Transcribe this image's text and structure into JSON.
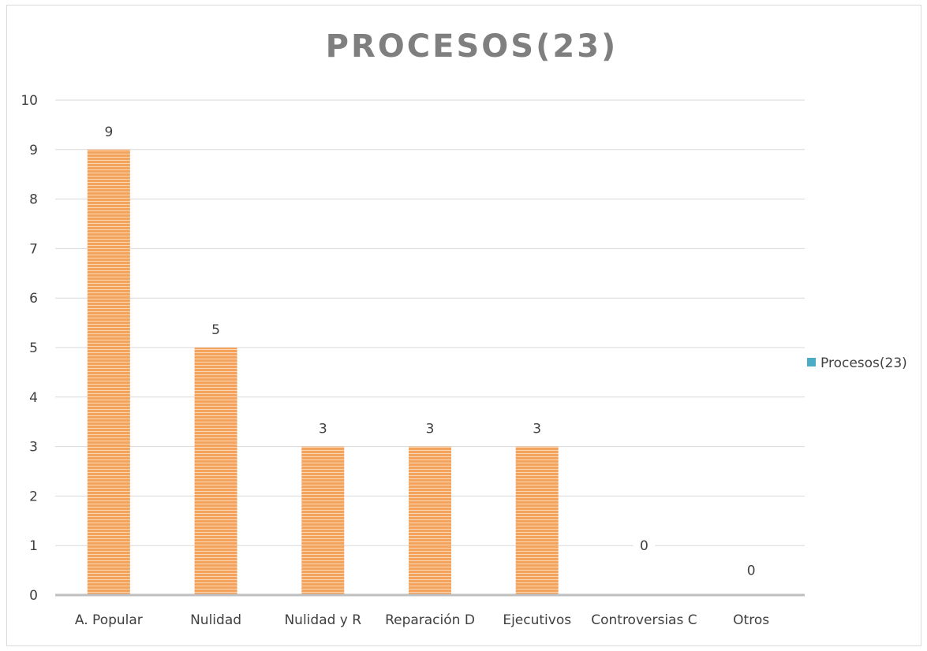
{
  "chart_data": {
    "type": "bar",
    "title": "PROCESOS(23)",
    "xlabel": "",
    "ylabel": "",
    "categories": [
      "A. Popular",
      "Nulidad",
      "Nulidad y R",
      "Reparación D",
      "Ejecutivos",
      "Controversias C",
      "Otros"
    ],
    "series": [
      {
        "name": "Procesos(23)",
        "values": [
          9,
          5,
          3,
          3,
          3,
          0,
          0
        ]
      }
    ],
    "ylim": [
      0,
      10
    ],
    "yticks": [
      0,
      1,
      2,
      3,
      4,
      5,
      6,
      7,
      8,
      9,
      10
    ],
    "grid": true,
    "legend_position": "right",
    "colors": {
      "bar": "#f4a35c",
      "bar_stripe": "#ffffff",
      "legend_swatch": "#4bacc6",
      "gridline": "#d9d9d9",
      "axis": "#bfbfbf",
      "title": "#7f7f7f",
      "text": "#404040"
    }
  }
}
